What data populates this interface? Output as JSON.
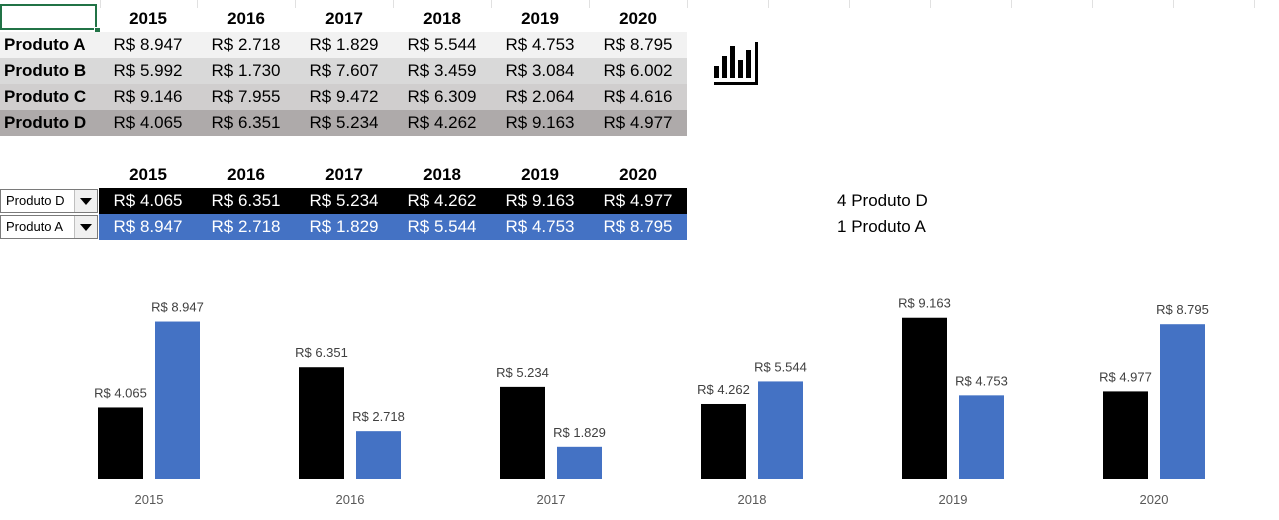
{
  "table1": {
    "years": [
      "2015",
      "2016",
      "2017",
      "2018",
      "2019",
      "2020"
    ],
    "rows": [
      {
        "label": "Produto A",
        "values": [
          "R$ 8.947",
          "R$ 2.718",
          "R$ 1.829",
          "R$ 5.544",
          "R$ 4.753",
          "R$ 8.795"
        ]
      },
      {
        "label": "Produto B",
        "values": [
          "R$ 5.992",
          "R$ 1.730",
          "R$ 7.607",
          "R$ 3.459",
          "R$ 3.084",
          "R$ 6.002"
        ]
      },
      {
        "label": "Produto C",
        "values": [
          "R$ 9.146",
          "R$ 7.955",
          "R$ 9.472",
          "R$ 6.309",
          "R$ 2.064",
          "R$ 4.616"
        ]
      },
      {
        "label": "Produto D",
        "values": [
          "R$ 4.065",
          "R$ 6.351",
          "R$ 5.234",
          "R$ 4.262",
          "R$ 9.163",
          "R$ 4.977"
        ]
      }
    ]
  },
  "table2": {
    "years": [
      "2015",
      "2016",
      "2017",
      "2018",
      "2019",
      "2020"
    ],
    "rows": [
      {
        "selected": "Produto D",
        "values": [
          "R$ 4.065",
          "R$ 6.351",
          "R$ 5.234",
          "R$ 4.262",
          "R$ 9.163",
          "R$ 4.977"
        ]
      },
      {
        "selected": "Produto A",
        "values": [
          "R$ 8.947",
          "R$ 2.718",
          "R$ 1.829",
          "R$ 5.544",
          "R$ 4.753",
          "R$ 8.795"
        ]
      }
    ]
  },
  "side": {
    "line1_index": "4",
    "line1_name": "Produto D",
    "line2_index": "1",
    "line2_name": "Produto A"
  },
  "icons": {
    "chart_icon": "bar-chart-icon",
    "dropdown_icon": "chevron-down-icon"
  },
  "colors": {
    "series1": "#000000",
    "series2": "#4472c4",
    "selection": "#217346"
  },
  "chart_data": {
    "type": "bar",
    "categories": [
      "2015",
      "2016",
      "2017",
      "2018",
      "2019",
      "2020"
    ],
    "series": [
      {
        "values": [
          4065,
          6351,
          5234,
          4262,
          9163,
          4977
        ],
        "labels": [
          "R$ 4.065",
          "R$ 6.351",
          "R$ 5.234",
          "R$ 4.262",
          "R$ 9.163",
          "R$ 4.977"
        ],
        "color": "#000000"
      },
      {
        "values": [
          8947,
          2718,
          1829,
          5544,
          4753,
          8795
        ],
        "labels": [
          "R$ 8.947",
          "R$ 2.718",
          "R$ 1.829",
          "R$ 5.544",
          "R$ 4.753",
          "R$ 8.795"
        ],
        "color": "#4472c4"
      }
    ],
    "ylim": [
      0,
      10000
    ],
    "title": "",
    "xlabel": "",
    "ylabel": "",
    "grid": false,
    "legend": "none"
  }
}
